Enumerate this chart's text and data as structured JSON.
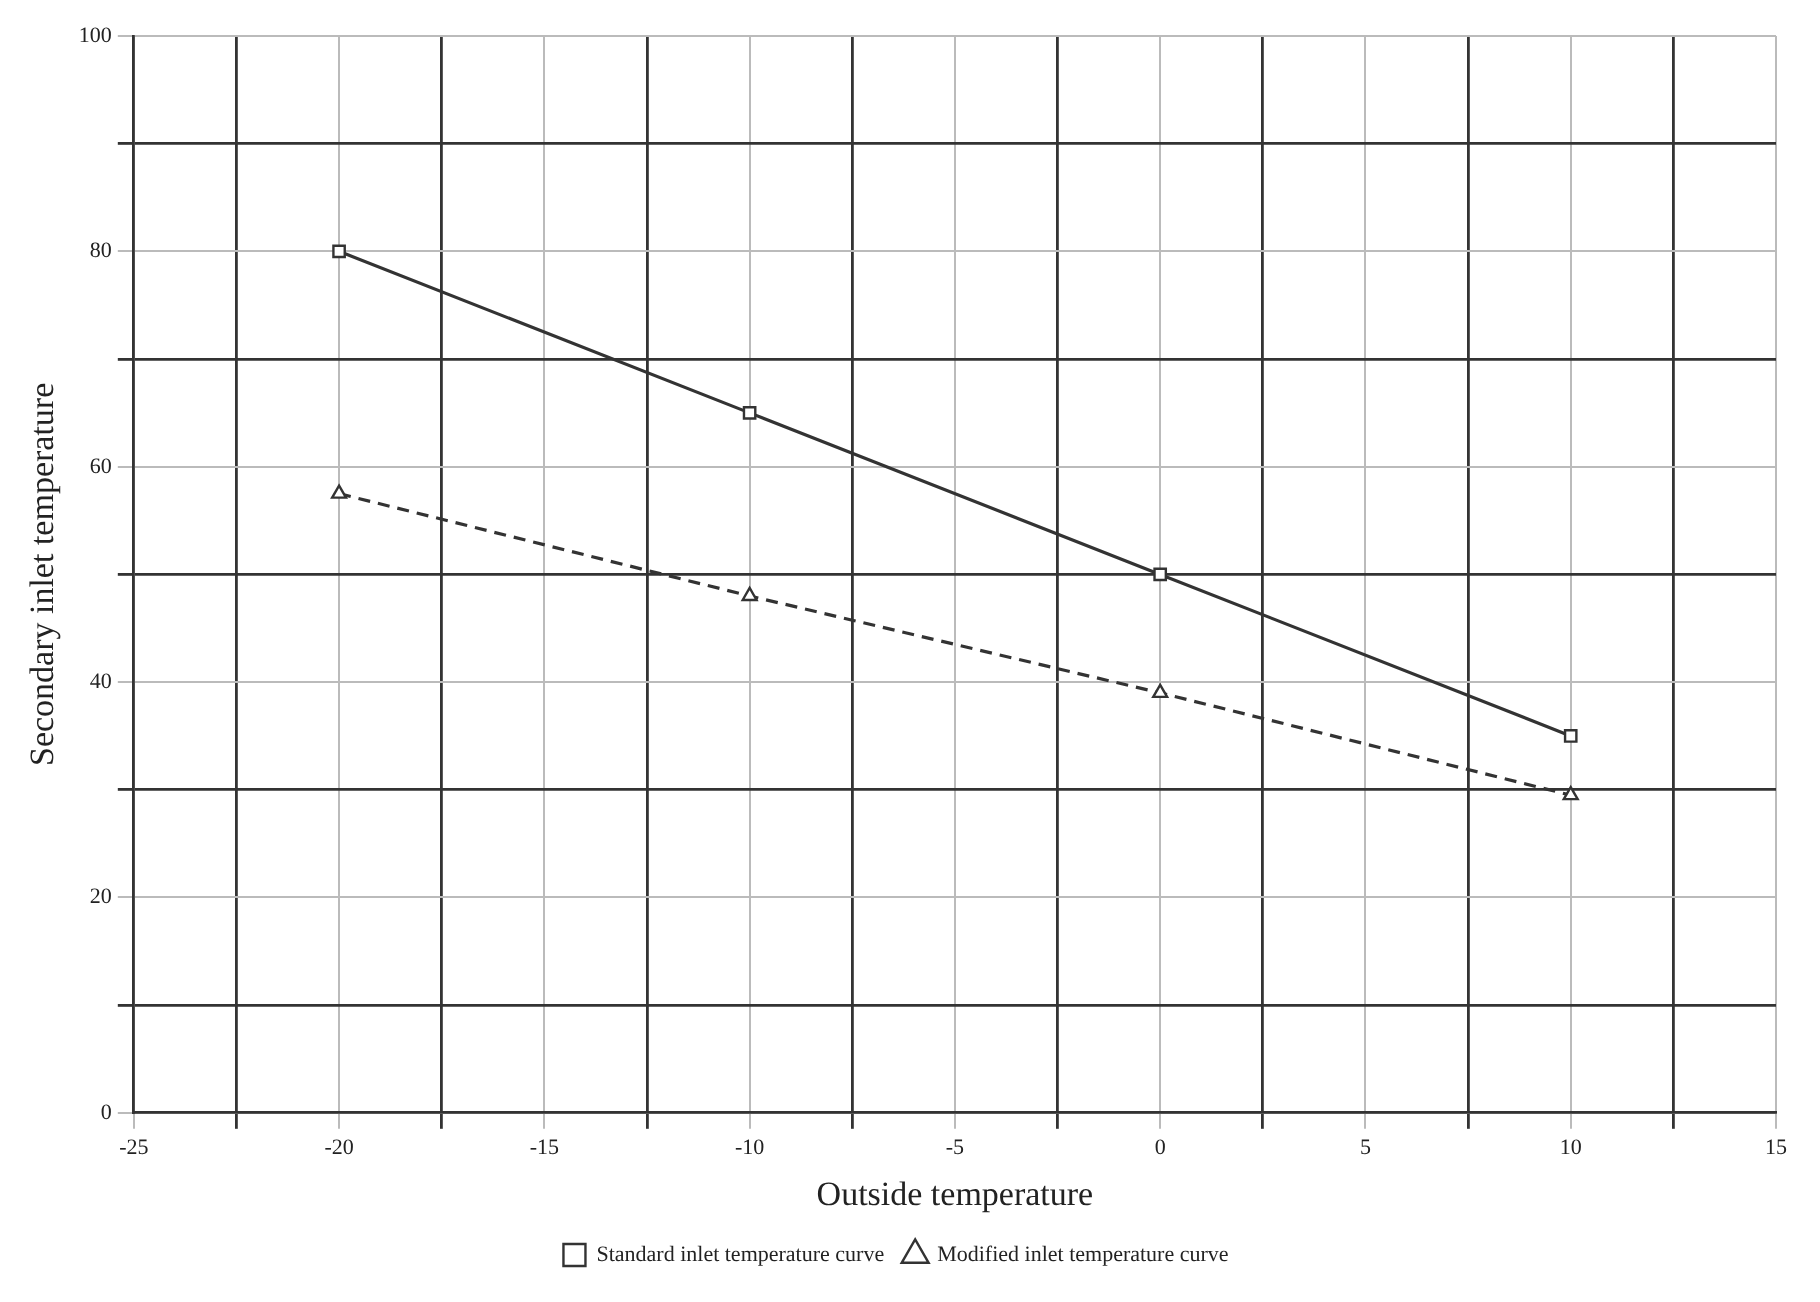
{
  "chart_data": {
    "type": "line",
    "xlabel": "Outside temperature",
    "ylabel": "Secondary inlet temperature",
    "xlim": [
      -25,
      15
    ],
    "ylim": [
      0,
      100
    ],
    "xticks": [
      -25,
      {
        "value": -22.5,
        "label": null
      },
      -20,
      {
        "value": -17.5,
        "label": null
      },
      -15,
      {
        "value": -12.5,
        "label": null
      },
      -10,
      {
        "value": -7.5,
        "label": null
      },
      -5,
      {
        "value": -2.5,
        "label": null
      },
      0,
      {
        "value": 2.5,
        "label": null
      },
      5,
      {
        "value": 7.5,
        "label": null
      },
      10,
      {
        "value": 12.5,
        "label": null
      },
      15
    ],
    "yticks": [
      0,
      {
        "value": 10,
        "label": null
      },
      20,
      {
        "value": 30,
        "label": null
      },
      40,
      {
        "value": 50,
        "label": null
      },
      60,
      {
        "value": 70,
        "label": null
      },
      80,
      {
        "value": 90,
        "label": null
      },
      100
    ],
    "grid": true,
    "legend": "bottom",
    "series": [
      {
        "name": "Standard inlet temperature curve",
        "color": "#333333",
        "x": [
          -20,
          -10,
          0,
          10
        ],
        "values": [
          80,
          65,
          50,
          35
        ],
        "marker": "square",
        "line_style": "solid"
      },
      {
        "name": "Modified inlet temperature curve",
        "color": "#333333",
        "x": [
          -20,
          -10,
          0,
          10
        ],
        "values": [
          57.5,
          48,
          39,
          29.5
        ],
        "marker": "triangle",
        "line_style": "dashed"
      }
    ]
  }
}
